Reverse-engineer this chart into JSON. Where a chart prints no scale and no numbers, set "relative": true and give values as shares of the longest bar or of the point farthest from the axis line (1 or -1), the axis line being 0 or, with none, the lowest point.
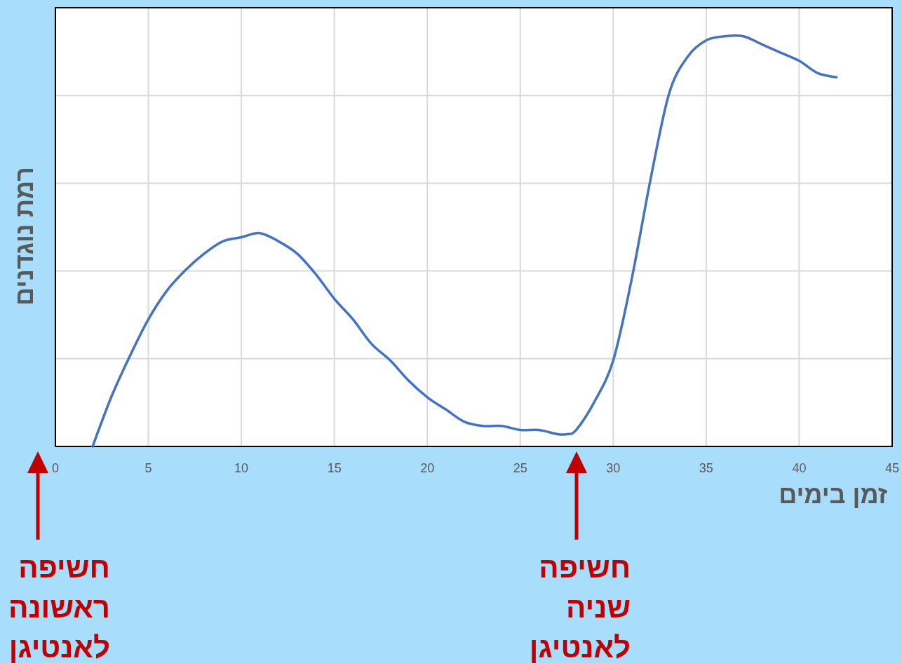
{
  "chart_data": {
    "type": "line",
    "relative": true,
    "xlabel": "זמן בימים",
    "ylabel": "רמת נוגדנים",
    "color": "#4472c4",
    "grid": true,
    "xlim": [
      0,
      45
    ],
    "xticks": [
      0,
      5,
      10,
      15,
      20,
      25,
      30,
      35,
      40,
      45
    ],
    "x": [
      2,
      3,
      4,
      5,
      6,
      7,
      8,
      9,
      10,
      11,
      12,
      13,
      14,
      15,
      16,
      17,
      18,
      19,
      20,
      21,
      22,
      23,
      24,
      25,
      26,
      27,
      27.5,
      28,
      29,
      30,
      31,
      32,
      33,
      34,
      35,
      36,
      37,
      38,
      39,
      40,
      41,
      42
    ],
    "values": [
      0,
      0.12,
      0.22,
      0.31,
      0.38,
      0.43,
      0.47,
      0.5,
      0.51,
      0.52,
      0.5,
      0.47,
      0.42,
      0.36,
      0.31,
      0.25,
      0.21,
      0.16,
      0.12,
      0.09,
      0.06,
      0.05,
      0.05,
      0.04,
      0.04,
      0.03,
      0.03,
      0.04,
      0.11,
      0.21,
      0.41,
      0.65,
      0.86,
      0.95,
      0.99,
      1,
      1,
      0.98,
      0.96,
      0.94,
      0.91,
      0.9
    ],
    "annotations": [
      "חשיפה ראשונה לאנטיגן",
      "חשיפה שניה לאנטיגן"
    ]
  }
}
